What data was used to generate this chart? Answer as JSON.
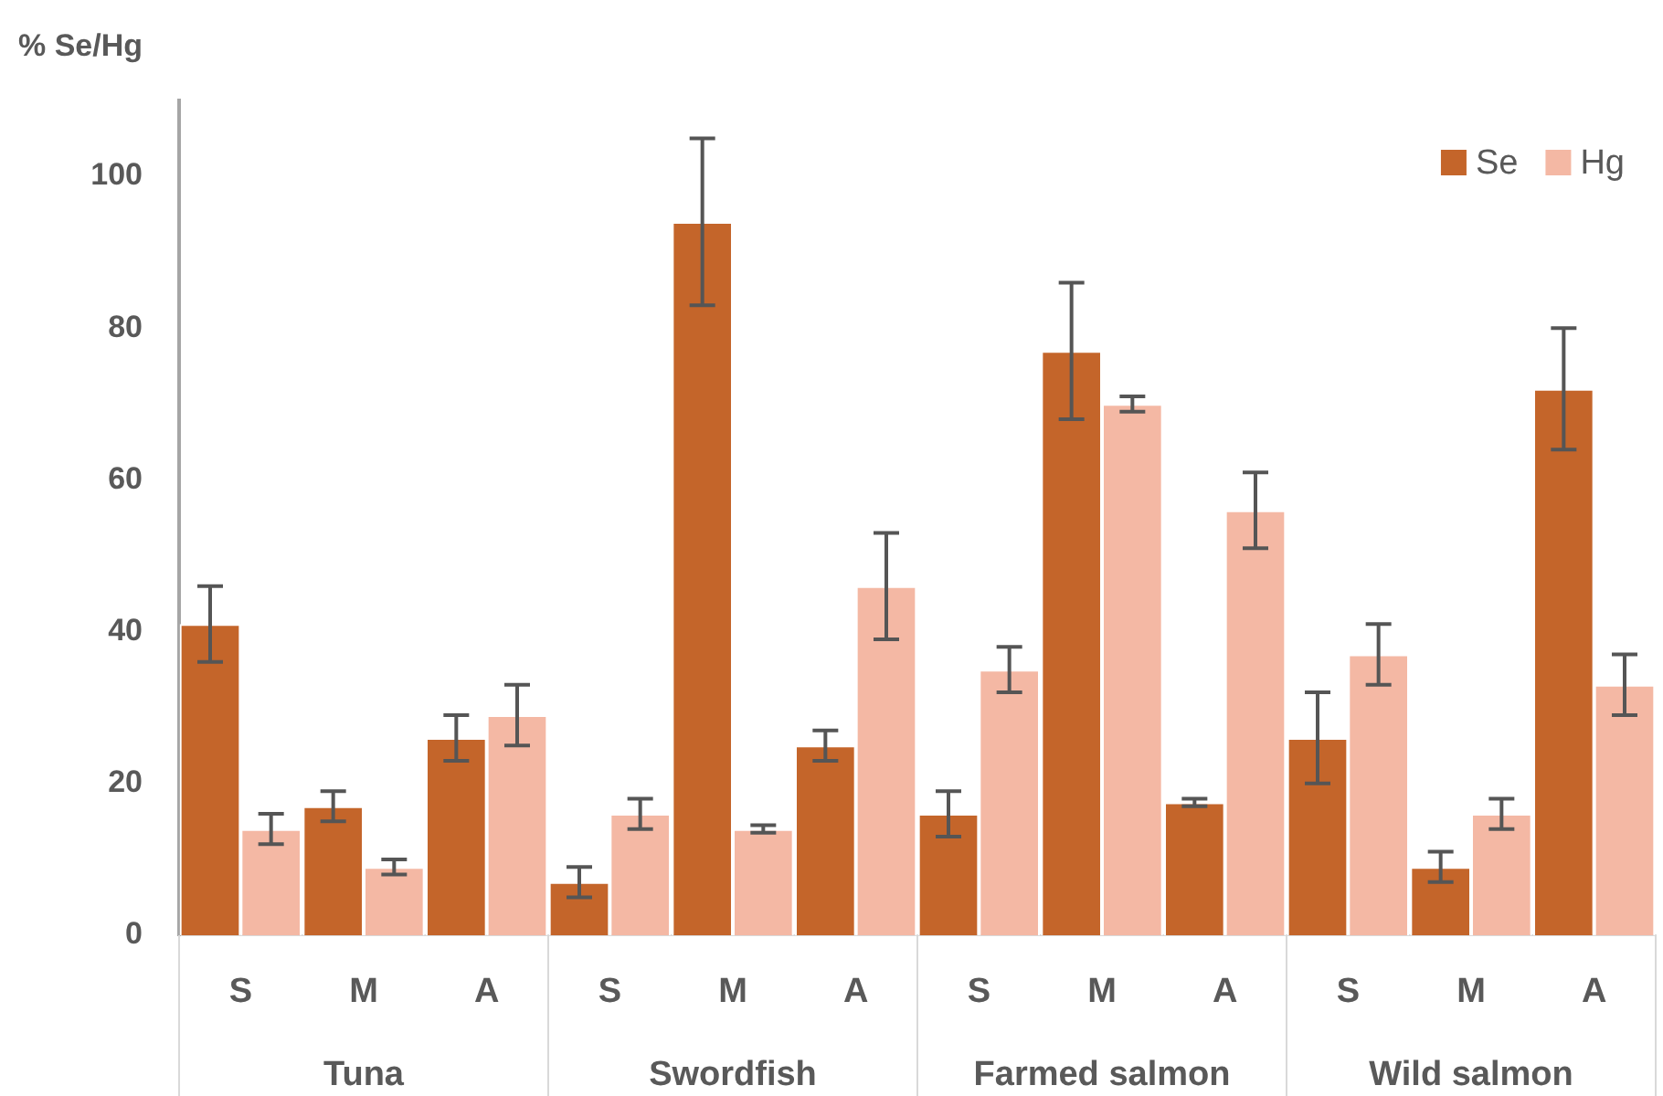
{
  "chart_data": {
    "type": "bar",
    "ylabel": "% Se/Hg",
    "categories": [
      "S",
      "M",
      "A",
      "S",
      "M",
      "A",
      "S",
      "M",
      "A",
      "S",
      "M",
      "A"
    ],
    "series": [
      {
        "name": "Se",
        "color": "#c4652a",
        "values": [
          41,
          17,
          26,
          7,
          94,
          25,
          16,
          77,
          17.5,
          26,
          9,
          72
        ],
        "errors": [
          [
            36,
            46
          ],
          [
            15,
            19
          ],
          [
            23,
            29
          ],
          [
            5,
            9
          ],
          [
            83,
            105
          ],
          [
            23,
            27
          ],
          [
            13,
            19
          ],
          [
            68,
            86
          ],
          [
            17,
            18
          ],
          [
            20,
            32
          ],
          [
            7,
            11
          ],
          [
            64,
            80
          ]
        ]
      },
      {
        "name": "Hg",
        "color": "#f4b8a4",
        "values": [
          14,
          9,
          29,
          16,
          14,
          46,
          35,
          70,
          56,
          37,
          16,
          33
        ],
        "errors": [
          [
            12,
            16
          ],
          [
            8,
            10
          ],
          [
            25,
            33
          ],
          [
            14,
            18
          ],
          [
            13.5,
            14.5
          ],
          [
            39,
            53
          ],
          [
            32,
            38
          ],
          [
            69,
            71
          ],
          [
            51,
            61
          ],
          [
            33,
            41
          ],
          [
            14,
            18
          ],
          [
            29,
            37
          ]
        ]
      }
    ],
    "annotations": [
      "Tuna",
      "Swordfish",
      "Farmed salmon",
      "Wild salmon"
    ],
    "ylim": [
      0,
      110
    ],
    "yticks": [
      0,
      20,
      40,
      60,
      80,
      100
    ],
    "legend": "top right"
  }
}
